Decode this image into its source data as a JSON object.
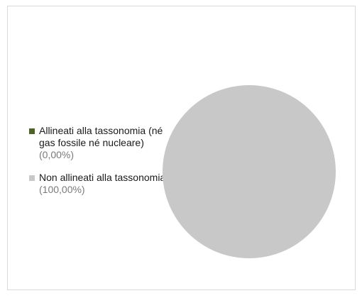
{
  "chart_data": {
    "type": "pie",
    "title": "",
    "legend_position": "left",
    "slices": [
      {
        "label": "Allineati alla tassonomia (né gas fossile né nucleare)",
        "value_text": "(0,00%)",
        "value": 0.0,
        "color": "#4f6228"
      },
      {
        "label": "Non allineati alla tassonomia",
        "value_text": "(100,00%)",
        "value": 100.0,
        "color": "#c8c8c8"
      }
    ]
  }
}
